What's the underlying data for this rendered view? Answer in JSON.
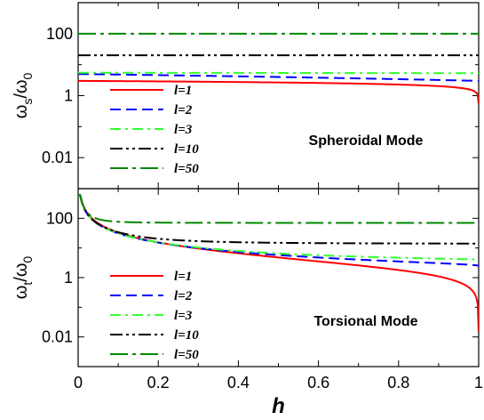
{
  "chart_data": [
    {
      "type": "line",
      "panel": "top",
      "ylabel": "ωs/ω0",
      "ylabel_main": "ω",
      "ylabel_sub": "s",
      "ylabel_den": "/ω",
      "ylabel_den_sub": "0",
      "yscale": "log",
      "ylim": [
        0.001,
        1000
      ],
      "xlim": [
        0,
        1
      ],
      "yticks": [
        {
          "value": 0.01,
          "label": "0.01"
        },
        {
          "value": 1,
          "label": "1"
        },
        {
          "value": 100,
          "label": "100"
        }
      ],
      "annotation": "Spheroidal Mode",
      "legend_placement": "lower-left",
      "series": [
        {
          "name": "l=1",
          "color": "#ff0000",
          "style": "solid",
          "model": "sph",
          "start": 3.0,
          "exp": 0.17
        },
        {
          "name": "l=2",
          "color": "#0000ff",
          "style": "dash",
          "flat": true,
          "start": 5.0,
          "end": 3.0
        },
        {
          "name": "l=3",
          "color": "#33ff33",
          "style": "dashdot",
          "flat": true,
          "start": 5.5,
          "end": 5.3
        },
        {
          "name": "l=10",
          "color": "#000000",
          "style": "dashdotdot",
          "flat": true,
          "start": 20,
          "end": 20
        },
        {
          "name": "l=50",
          "color": "#008800",
          "style": "dashdotlong",
          "flat": true,
          "start": 100,
          "end": 100
        }
      ]
    },
    {
      "type": "line",
      "panel": "bottom",
      "ylabel": "ωt/ω0",
      "ylabel_main": "ω",
      "ylabel_sub": "t",
      "ylabel_den": "/ω",
      "ylabel_den_sub": "0",
      "xlabel": "h",
      "yscale": "log",
      "ylim": [
        0.001,
        1000
      ],
      "xlim": [
        0,
        1
      ],
      "xticks": [
        {
          "value": 0,
          "label": "0"
        },
        {
          "value": 0.2,
          "label": "0.2"
        },
        {
          "value": 0.4,
          "label": "0.4"
        },
        {
          "value": 0.6,
          "label": "0.6"
        },
        {
          "value": 0.8,
          "label": "0.8"
        },
        {
          "value": 1,
          "label": "1"
        }
      ],
      "yticks": [
        {
          "value": 0.01,
          "label": "0.01"
        },
        {
          "value": 1,
          "label": "1"
        },
        {
          "value": 100,
          "label": "100"
        }
      ],
      "annotation": "Torsional Mode",
      "legend_placement": "lower-left",
      "series": [
        {
          "name": "l=1",
          "color": "#ff0000",
          "style": "solid",
          "model": "tor1",
          "plateau": 0
        },
        {
          "name": "l=2",
          "color": "#0000ff",
          "style": "dash",
          "model": "tor",
          "plateau": 2.5
        },
        {
          "name": "l=3",
          "color": "#33ff33",
          "style": "dashdot",
          "model": "tor",
          "plateau": 4.0
        },
        {
          "name": "l=10",
          "color": "#000000",
          "style": "dashdotdot",
          "model": "tor",
          "plateau": 14
        },
        {
          "name": "l=50",
          "color": "#008800",
          "style": "dashdotlong",
          "model": "tor",
          "plateau": 70
        }
      ]
    }
  ]
}
